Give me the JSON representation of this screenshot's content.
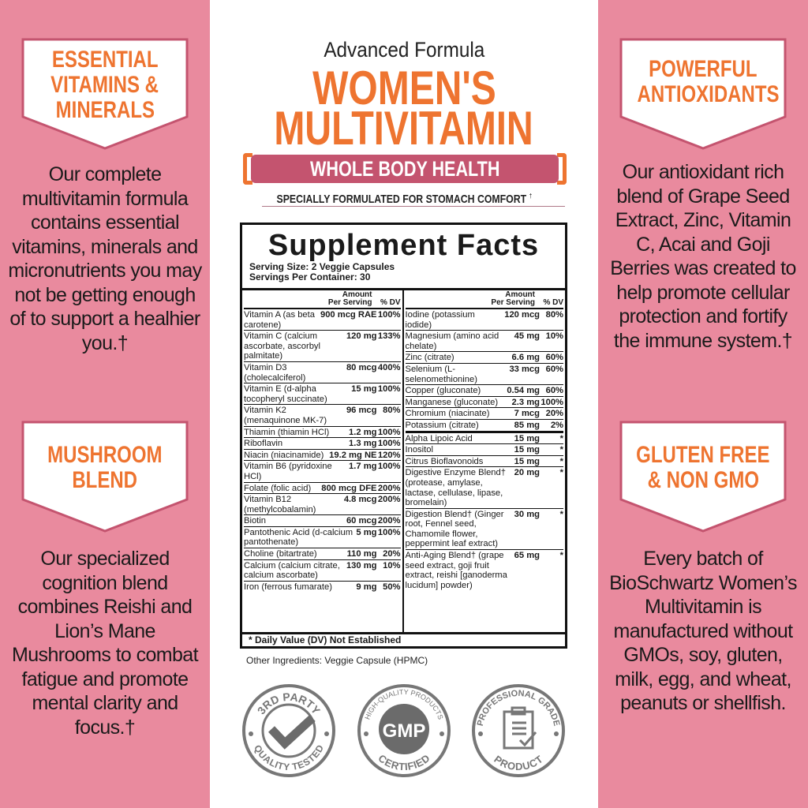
{
  "colors": {
    "pink": "#e98a9e",
    "orange": "#ee7430",
    "rose": "#c4546f"
  },
  "left": {
    "banner1": [
      "ESSENTIAL",
      "VITAMINS &",
      "MINERALS"
    ],
    "body1": "Our complete multivitamin formula contains essential vitamins, minerals and micronutrients you may not be getting enough of to support a healhier you.†",
    "banner2": [
      "MUSHROOM",
      "BLEND"
    ],
    "body2": "Our specialized cognition blend combines Reishi and Lion’s Mane Mushrooms to combat fatigue and promote mental clarity and focus.†"
  },
  "right": {
    "banner1": [
      "POWERFUL",
      "ANTIOXIDANTS"
    ],
    "body1": "Our antioxidant rich blend of Grape Seed Extract, Zinc, Vitamin C, Acai and Goji Berries was created to help promote cellular protection and fortify the immune system.†",
    "banner2": [
      "GLUTEN FREE",
      "& NON GMO"
    ],
    "body2": "Every batch of BioSchwartz Women’s Multivitamin is manufactured without GMOs, soy, gluten, milk, egg, and wheat, peanuts or shellfish."
  },
  "header": {
    "advanced": "Advanced Formula",
    "title1": "WOMEN'S",
    "title2": "MULTIVITAMIN",
    "pill": "WHOLE BODY HEALTH",
    "subtitle": "SPECIALLY FORMULATED FOR STOMACH COMFORT",
    "dagger": "†"
  },
  "facts": {
    "title": "Supplement Facts",
    "serving_size": "Serving Size: 2 Veggie Capsules",
    "servings": "Servings Per Container: 30",
    "col_amount": "Amount",
    "col_per": "Per Serving",
    "col_dv": "% DV",
    "left_rows": [
      {
        "n": "Vitamin A (as beta carotene)",
        "a": "900 mcg RAE",
        "d": "100%"
      },
      {
        "n": "Vitamin C (calcium ascorbate, ascorbyl palmitate)",
        "a": "120 mg",
        "d": "133%"
      },
      {
        "n": "Vitamin D3 (cholecalciferol)",
        "a": "80 mcg",
        "d": "400%"
      },
      {
        "n": "Vitamin E (d-alpha tocopheryl succinate)",
        "a": "15 mg",
        "d": "100%"
      },
      {
        "n": "Vitamin K2 (menaquinone MK-7)",
        "a": "96 mcg",
        "d": "80%"
      },
      {
        "n": "Thiamin (thiamin HCl)",
        "a": "1.2 mg",
        "d": "100%"
      },
      {
        "n": "Riboflavin",
        "a": "1.3 mg",
        "d": "100%"
      },
      {
        "n": "Niacin (niacinamide)",
        "a": "19.2 mg NE",
        "d": "120%"
      },
      {
        "n": "Vitamin B6 (pyridoxine HCl)",
        "a": "1.7 mg",
        "d": "100%"
      },
      {
        "n": "Folate (folic acid)",
        "a": "800 mcg DFE",
        "d": "200%"
      },
      {
        "n": "Vitamin B12 (methylcobalamin)",
        "a": "4.8 mcg",
        "d": "200%"
      },
      {
        "n": "Biotin",
        "a": "60 mcg",
        "d": "200%"
      },
      {
        "n": "Pantothenic Acid (d-calcium pantothenate)",
        "a": "5 mg",
        "d": "100%"
      },
      {
        "n": "Choline (bitartrate)",
        "a": "110 mg",
        "d": "20%"
      },
      {
        "n": "Calcium (calcium citrate, calcium ascorbate)",
        "a": "130 mg",
        "d": "10%"
      },
      {
        "n": "Iron (ferrous fumarate)",
        "a": "9 mg",
        "d": "50%"
      }
    ],
    "right_rows": [
      {
        "n": "Iodine (potassium iodide)",
        "a": "120 mcg",
        "d": "80%"
      },
      {
        "n": "Magnesium (amino acid chelate)",
        "a": "45 mg",
        "d": "10%"
      },
      {
        "n": "Zinc (citrate)",
        "a": "6.6 mg",
        "d": "60%"
      },
      {
        "n": "Selenium (L-selenomethionine)",
        "a": "33 mcg",
        "d": "60%"
      },
      {
        "n": "Copper (gluconate)",
        "a": "0.54 mg",
        "d": "60%"
      },
      {
        "n": "Manganese (gluconate)",
        "a": "2.3 mg",
        "d": "100%"
      },
      {
        "n": "Chromium (niacinate)",
        "a": "7 mcg",
        "d": "20%"
      },
      {
        "n": "Potassium (citrate)",
        "a": "85 mg",
        "d": "2%"
      },
      {
        "n": "Alpha Lipoic Acid",
        "a": "15 mg",
        "d": "*"
      },
      {
        "n": "Inositol",
        "a": "15 mg",
        "d": "*"
      },
      {
        "n": "Citrus Bioflavonoids",
        "a": "15 mg",
        "d": "*"
      },
      {
        "n": "Digestive Enzyme Blend† (protease, amylase, lactase, cellulase, lipase, bromelain)",
        "a": "20 mg",
        "d": "*"
      },
      {
        "n": "Digestion Blend† (Ginger root, Fennel seed, Chamomile flower, peppermint leaf extract)",
        "a": "30 mg",
        "d": "*"
      },
      {
        "n": "Anti-Aging Blend† (grape seed extract, goji fruit extract, reishi [ganoderma lucidum] powder)",
        "a": "65 mg",
        "d": "*"
      }
    ],
    "footnote": "* Daily Value (DV) Not Established",
    "other": "Other Ingredients: Veggie Capsule (HPMC)"
  },
  "badges": [
    {
      "icon": "checkmark-icon",
      "top": "3RD PARTY",
      "bottom": "QUALITY TESTED"
    },
    {
      "icon": "gmp-icon",
      "top": "HIGH-QUALITY PRODUCTS",
      "center": "GMP",
      "bottom": "CERTIFIED"
    },
    {
      "icon": "clipboard-icon",
      "top": "PROFESSIONAL GRADE",
      "bottom": "PRODUCT"
    }
  ]
}
